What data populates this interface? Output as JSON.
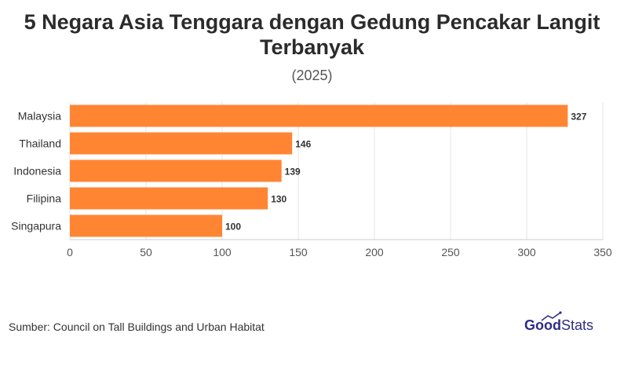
{
  "header": {
    "title": "5 Negara Asia Tenggara dengan Gedung Pencakar Langit Terbanyak",
    "subtitle": "(2025)"
  },
  "footer": {
    "source": "Sumber: Council on Tall Buildings and Urban Habitat",
    "logo_text": "GoodStats"
  },
  "colors": {
    "bar": "#ff8533",
    "logo": "#2d2e83",
    "grid": "#e6e6e6"
  },
  "chart_data": {
    "type": "bar",
    "orientation": "horizontal",
    "title": "5 Negara Asia Tenggara dengan Gedung Pencakar Langit Terbanyak",
    "subtitle": "(2025)",
    "categories": [
      "Malaysia",
      "Thailand",
      "Indonesia",
      "Filipina",
      "Singapura"
    ],
    "values": [
      327,
      146,
      139,
      130,
      100
    ],
    "xlim": [
      0,
      350
    ],
    "xticks": [
      0,
      50,
      100,
      150,
      200,
      250,
      300,
      350
    ],
    "grid": true,
    "data_labels": true
  }
}
